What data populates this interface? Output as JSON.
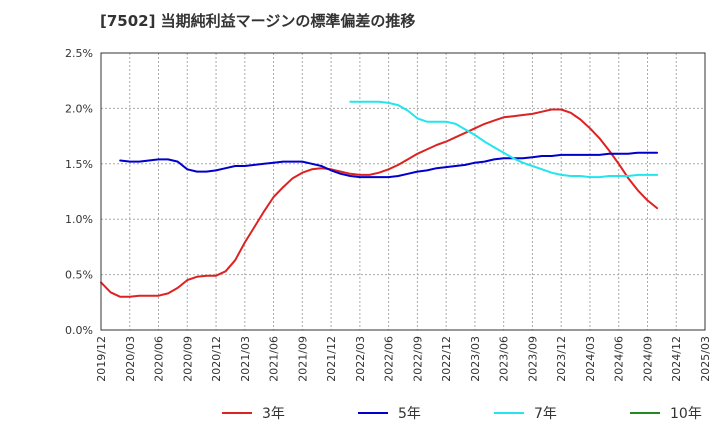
{
  "chart_data": {
    "type": "line",
    "title": "[7502]  当期純利益マージンの標準偏差の推移",
    "xlabel": "",
    "ylabel": "",
    "ylim": [
      0,
      2.5
    ],
    "yticks": [
      "0.0%",
      "0.5%",
      "1.0%",
      "1.5%",
      "2.0%",
      "2.5%"
    ],
    "xticks": [
      "2019/12",
      "2020/03",
      "2020/06",
      "2020/09",
      "2020/12",
      "2021/03",
      "2021/06",
      "2021/09",
      "2021/12",
      "2022/03",
      "2022/06",
      "2022/09",
      "2022/12",
      "2023/03",
      "2023/06",
      "2023/09",
      "2023/12",
      "2024/03",
      "2024/06",
      "2024/09",
      "2024/12",
      "2025/03"
    ],
    "grid": true,
    "legend_position": "bottom",
    "series": [
      {
        "name": "3年",
        "color": "#dd2222",
        "points": [
          [
            "2019/12",
            0.43
          ],
          [
            "2020/01",
            0.34
          ],
          [
            "2020/02",
            0.3
          ],
          [
            "2020/03",
            0.3
          ],
          [
            "2020/04",
            0.31
          ],
          [
            "2020/05",
            0.31
          ],
          [
            "2020/06",
            0.31
          ],
          [
            "2020/07",
            0.33
          ],
          [
            "2020/08",
            0.38
          ],
          [
            "2020/09",
            0.45
          ],
          [
            "2020/10",
            0.48
          ],
          [
            "2020/11",
            0.49
          ],
          [
            "2020/12",
            0.49
          ],
          [
            "2021/01",
            0.53
          ],
          [
            "2021/02",
            0.63
          ],
          [
            "2021/03",
            0.79
          ],
          [
            "2021/04",
            0.93
          ],
          [
            "2021/05",
            1.07
          ],
          [
            "2021/06",
            1.2
          ],
          [
            "2021/07",
            1.29
          ],
          [
            "2021/08",
            1.37
          ],
          [
            "2021/09",
            1.42
          ],
          [
            "2021/10",
            1.45
          ],
          [
            "2021/11",
            1.46
          ],
          [
            "2021/12",
            1.45
          ],
          [
            "2022/01",
            1.43
          ],
          [
            "2022/02",
            1.41
          ],
          [
            "2022/03",
            1.4
          ],
          [
            "2022/04",
            1.4
          ],
          [
            "2022/05",
            1.42
          ],
          [
            "2022/06",
            1.45
          ],
          [
            "2022/07",
            1.49
          ],
          [
            "2022/08",
            1.54
          ],
          [
            "2022/09",
            1.59
          ],
          [
            "2022/10",
            1.63
          ],
          [
            "2022/11",
            1.67
          ],
          [
            "2022/12",
            1.7
          ],
          [
            "2023/01",
            1.74
          ],
          [
            "2023/02",
            1.78
          ],
          [
            "2023/03",
            1.82
          ],
          [
            "2023/04",
            1.86
          ],
          [
            "2023/05",
            1.89
          ],
          [
            "2023/06",
            1.92
          ],
          [
            "2023/07",
            1.93
          ],
          [
            "2023/08",
            1.94
          ],
          [
            "2023/09",
            1.95
          ],
          [
            "2023/10",
            1.97
          ],
          [
            "2023/11",
            1.99
          ],
          [
            "2023/12",
            1.99
          ],
          [
            "2024/01",
            1.96
          ],
          [
            "2024/02",
            1.9
          ],
          [
            "2024/03",
            1.82
          ],
          [
            "2024/04",
            1.73
          ],
          [
            "2024/05",
            1.62
          ],
          [
            "2024/06",
            1.5
          ],
          [
            "2024/07",
            1.37
          ],
          [
            "2024/08",
            1.26
          ],
          [
            "2024/09",
            1.17
          ],
          [
            "2024/10",
            1.1
          ]
        ]
      },
      {
        "name": "5年",
        "color": "#0000cc",
        "points": [
          [
            "2020/02",
            1.53
          ],
          [
            "2020/03",
            1.52
          ],
          [
            "2020/04",
            1.52
          ],
          [
            "2020/05",
            1.53
          ],
          [
            "2020/06",
            1.54
          ],
          [
            "2020/07",
            1.54
          ],
          [
            "2020/08",
            1.52
          ],
          [
            "2020/09",
            1.45
          ],
          [
            "2020/10",
            1.43
          ],
          [
            "2020/11",
            1.43
          ],
          [
            "2020/12",
            1.44
          ],
          [
            "2021/01",
            1.46
          ],
          [
            "2021/02",
            1.48
          ],
          [
            "2021/03",
            1.48
          ],
          [
            "2021/04",
            1.49
          ],
          [
            "2021/05",
            1.5
          ],
          [
            "2021/06",
            1.51
          ],
          [
            "2021/07",
            1.52
          ],
          [
            "2021/08",
            1.52
          ],
          [
            "2021/09",
            1.52
          ],
          [
            "2021/10",
            1.5
          ],
          [
            "2021/11",
            1.48
          ],
          [
            "2021/12",
            1.44
          ],
          [
            "2022/01",
            1.41
          ],
          [
            "2022/02",
            1.39
          ],
          [
            "2022/03",
            1.38
          ],
          [
            "2022/04",
            1.38
          ],
          [
            "2022/05",
            1.38
          ],
          [
            "2022/06",
            1.38
          ],
          [
            "2022/07",
            1.39
          ],
          [
            "2022/08",
            1.41
          ],
          [
            "2022/09",
            1.43
          ],
          [
            "2022/10",
            1.44
          ],
          [
            "2022/11",
            1.46
          ],
          [
            "2022/12",
            1.47
          ],
          [
            "2023/01",
            1.48
          ],
          [
            "2023/02",
            1.49
          ],
          [
            "2023/03",
            1.51
          ],
          [
            "2023/04",
            1.52
          ],
          [
            "2023/05",
            1.54
          ],
          [
            "2023/06",
            1.55
          ],
          [
            "2023/07",
            1.55
          ],
          [
            "2023/08",
            1.55
          ],
          [
            "2023/09",
            1.56
          ],
          [
            "2023/10",
            1.57
          ],
          [
            "2023/11",
            1.57
          ],
          [
            "2023/12",
            1.58
          ],
          [
            "2024/01",
            1.58
          ],
          [
            "2024/02",
            1.58
          ],
          [
            "2024/03",
            1.58
          ],
          [
            "2024/04",
            1.58
          ],
          [
            "2024/05",
            1.59
          ],
          [
            "2024/06",
            1.59
          ],
          [
            "2024/07",
            1.59
          ],
          [
            "2024/08",
            1.6
          ],
          [
            "2024/09",
            1.6
          ],
          [
            "2024/10",
            1.6
          ]
        ]
      },
      {
        "name": "7年",
        "color": "#22e5ee",
        "points": [
          [
            "2022/02",
            2.06
          ],
          [
            "2022/03",
            2.06
          ],
          [
            "2022/04",
            2.06
          ],
          [
            "2022/05",
            2.06
          ],
          [
            "2022/06",
            2.05
          ],
          [
            "2022/07",
            2.03
          ],
          [
            "2022/08",
            1.98
          ],
          [
            "2022/09",
            1.91
          ],
          [
            "2022/10",
            1.88
          ],
          [
            "2022/11",
            1.88
          ],
          [
            "2022/12",
            1.88
          ],
          [
            "2023/01",
            1.86
          ],
          [
            "2023/02",
            1.81
          ],
          [
            "2023/03",
            1.76
          ],
          [
            "2023/04",
            1.7
          ],
          [
            "2023/05",
            1.65
          ],
          [
            "2023/06",
            1.6
          ],
          [
            "2023/07",
            1.55
          ],
          [
            "2023/08",
            1.51
          ],
          [
            "2023/09",
            1.48
          ],
          [
            "2023/10",
            1.45
          ],
          [
            "2023/11",
            1.42
          ],
          [
            "2023/12",
            1.4
          ],
          [
            "2024/01",
            1.39
          ],
          [
            "2024/02",
            1.39
          ],
          [
            "2024/03",
            1.38
          ],
          [
            "2024/04",
            1.38
          ],
          [
            "2024/05",
            1.39
          ],
          [
            "2024/06",
            1.39
          ],
          [
            "2024/07",
            1.39
          ],
          [
            "2024/08",
            1.4
          ],
          [
            "2024/09",
            1.4
          ],
          [
            "2024/10",
            1.4
          ]
        ]
      },
      {
        "name": "10年",
        "color": "#228822",
        "points": []
      }
    ]
  }
}
